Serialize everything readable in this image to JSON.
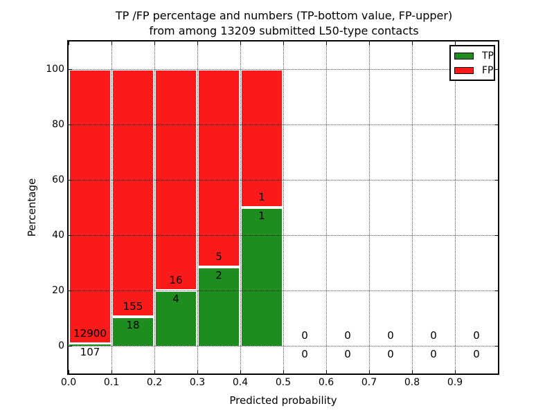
{
  "title": {
    "line1": "TP /FP percentage and numbers (TP-bottom value, FP-upper)",
    "line2": "from among 13209 submitted L50-type contacts"
  },
  "axes": {
    "xlabel": "Predicted probability",
    "ylabel": "Percentage",
    "yticks": [
      0,
      20,
      40,
      60,
      80,
      100
    ],
    "xticks": [
      "0.0",
      "0.1",
      "0.2",
      "0.3",
      "0.4",
      "0.5",
      "0.6",
      "0.7",
      "0.8",
      "0.9"
    ]
  },
  "legend": [
    {
      "label": "TP",
      "swatch": "tp-swatch"
    },
    {
      "label": "FP",
      "swatch": "fp-swatch"
    }
  ],
  "colors": {
    "tp_green": "#1e8c1e",
    "fp_red": "#fa1a1a",
    "grid": "#000000",
    "text": "#000000"
  },
  "chart_data": {
    "type": "bar",
    "stacked": true,
    "title": "TP /FP percentage and numbers (TP-bottom value, FP-upper) from among 13209 submitted L50-type contacts",
    "xlabel": "Predicted probability",
    "ylabel": "Percentage",
    "xlim": [
      0.0,
      1.0
    ],
    "ylim": [
      -10,
      110
    ],
    "grid": true,
    "legend_position": "upper right",
    "bin_width": 0.1,
    "total_submitted": 13209,
    "bins": [
      {
        "range": [
          0.0,
          0.1
        ],
        "tp": 107,
        "fp": 12900,
        "tp_pct": 0.82,
        "fp_pct": 99.18
      },
      {
        "range": [
          0.1,
          0.2
        ],
        "tp": 18,
        "fp": 155,
        "tp_pct": 10.4,
        "fp_pct": 89.6
      },
      {
        "range": [
          0.2,
          0.3
        ],
        "tp": 4,
        "fp": 16,
        "tp_pct": 20.0,
        "fp_pct": 80.0
      },
      {
        "range": [
          0.3,
          0.4
        ],
        "tp": 2,
        "fp": 5,
        "tp_pct": 28.57,
        "fp_pct": 71.43
      },
      {
        "range": [
          0.4,
          0.5
        ],
        "tp": 1,
        "fp": 1,
        "tp_pct": 50.0,
        "fp_pct": 50.0
      },
      {
        "range": [
          0.5,
          0.6
        ],
        "tp": 0,
        "fp": 0,
        "tp_pct": 0,
        "fp_pct": 0
      },
      {
        "range": [
          0.6,
          0.7
        ],
        "tp": 0,
        "fp": 0,
        "tp_pct": 0,
        "fp_pct": 0
      },
      {
        "range": [
          0.7,
          0.8
        ],
        "tp": 0,
        "fp": 0,
        "tp_pct": 0,
        "fp_pct": 0
      },
      {
        "range": [
          0.8,
          0.9
        ],
        "tp": 0,
        "fp": 0,
        "tp_pct": 0,
        "fp_pct": 0
      },
      {
        "range": [
          0.9,
          1.0
        ],
        "tp": 0,
        "fp": 0,
        "tp_pct": 0,
        "fp_pct": 0
      }
    ],
    "series": [
      {
        "name": "TP",
        "values": [
          0.82,
          10.4,
          20.0,
          28.57,
          50.0,
          0,
          0,
          0,
          0,
          0
        ]
      },
      {
        "name": "FP",
        "values": [
          99.18,
          89.6,
          80.0,
          71.43,
          50.0,
          0,
          0,
          0,
          0,
          0
        ]
      }
    ]
  }
}
